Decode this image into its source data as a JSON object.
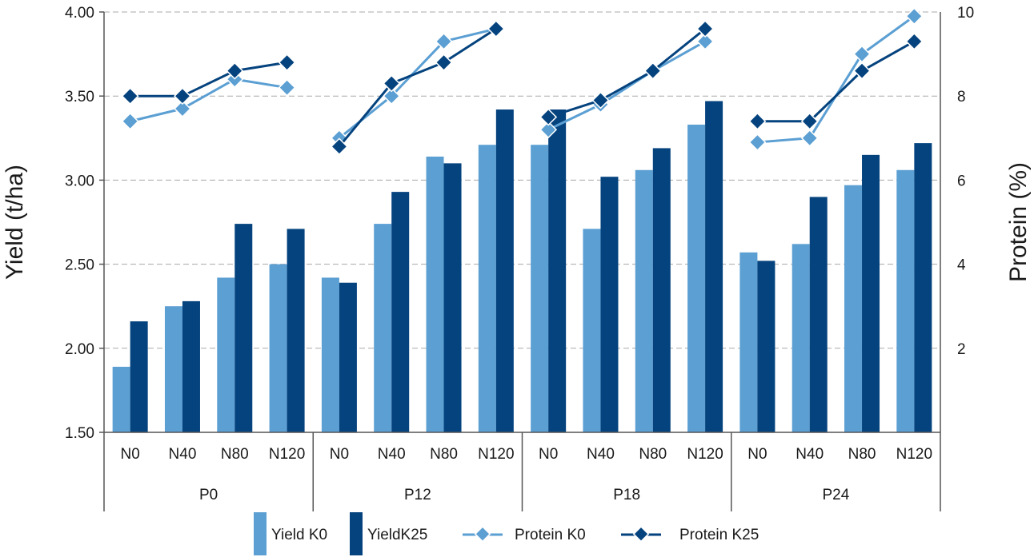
{
  "chart_data": {
    "type": "bar",
    "title": "",
    "ylabel": "Yield (t/ha)",
    "y2label": "Protein (%)",
    "ylim": [
      1.5,
      4.0
    ],
    "y2lim": [
      0,
      10
    ],
    "yticks": [
      "1.50",
      "2.00",
      "2.50",
      "3.00",
      "3.50",
      "4.00"
    ],
    "y2ticks": [
      "2",
      "4",
      "6",
      "8",
      "10"
    ],
    "y2tick_values": [
      2,
      4,
      6,
      8,
      10
    ],
    "grid": true,
    "legend_position": "bottom",
    "groups": [
      "P0",
      "P12",
      "P18",
      "P24"
    ],
    "categories": [
      "N0",
      "N40",
      "N80",
      "N120"
    ],
    "series": [
      {
        "name": "Yield K0",
        "kind": "bar",
        "axis": "left",
        "color": "#5b9fd3",
        "values": [
          [
            1.89,
            2.25,
            2.42,
            2.5
          ],
          [
            2.42,
            2.74,
            3.14,
            3.21
          ],
          [
            3.21,
            2.71,
            3.06,
            3.33
          ],
          [
            2.57,
            2.62,
            2.97,
            3.06
          ]
        ]
      },
      {
        "name": "YieldK25",
        "kind": "bar",
        "axis": "left",
        "color": "#05437e",
        "values": [
          [
            2.16,
            2.28,
            2.74,
            2.71
          ],
          [
            2.39,
            2.93,
            3.1,
            3.42
          ],
          [
            3.42,
            3.02,
            3.19,
            3.47
          ],
          [
            2.52,
            2.9,
            3.15,
            3.22
          ]
        ]
      },
      {
        "name": "Protein K0",
        "kind": "line",
        "axis": "right",
        "color": "#5b9fd3",
        "values": [
          [
            7.4,
            7.7,
            8.4,
            8.2
          ],
          [
            7.0,
            8.0,
            9.3,
            9.6
          ],
          [
            7.2,
            7.8,
            8.6,
            9.3
          ],
          [
            6.9,
            7.0,
            9.0,
            9.9
          ]
        ]
      },
      {
        "name": "Protein K25",
        "kind": "line",
        "axis": "right",
        "color": "#05437e",
        "values": [
          [
            8.0,
            8.0,
            8.6,
            8.8
          ],
          [
            6.8,
            8.3,
            8.8,
            9.6
          ],
          [
            7.5,
            7.9,
            8.6,
            9.6
          ],
          [
            7.4,
            7.4,
            8.6,
            9.3
          ]
        ]
      }
    ]
  }
}
